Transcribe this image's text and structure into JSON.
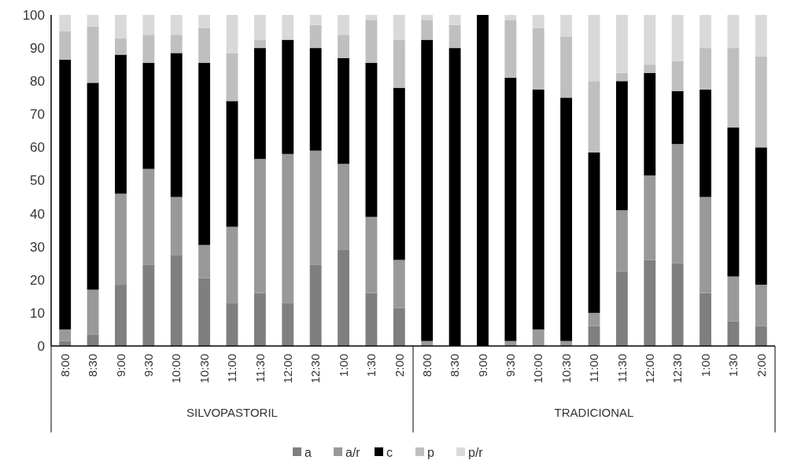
{
  "chart_data": {
    "type": "bar",
    "stacked": true,
    "categories": [
      "8:00",
      "8:30",
      "9:00",
      "9:30",
      "10:00",
      "10:30",
      "11:00",
      "11:30",
      "12:00",
      "12:30",
      "1:00",
      "1:30",
      "2:00",
      "8:00",
      "8:30",
      "9:00",
      "9:30",
      "10:00",
      "10:30",
      "11:00",
      "11:30",
      "12:00",
      "12:30",
      "1:00",
      "1:30",
      "2:00"
    ],
    "series": [
      {
        "name": "a",
        "color": "#7f7f7f",
        "values": [
          1.5,
          3.5,
          18.5,
          24.5,
          27.5,
          20.5,
          13,
          16,
          13,
          24.5,
          29,
          16,
          11.5,
          0,
          0,
          0,
          0,
          0,
          0,
          6,
          22.5,
          26,
          25,
          16,
          7.5,
          6
        ]
      },
      {
        "name": "a/r",
        "color": "#999999",
        "values": [
          3.5,
          13.5,
          27.5,
          29,
          17.5,
          10,
          23,
          40.5,
          45,
          34.5,
          26,
          23,
          14.5,
          1.5,
          0,
          0,
          1.5,
          5,
          1.5,
          4,
          18.5,
          25.5,
          36,
          29,
          13.5,
          12.5
        ]
      },
      {
        "name": "c",
        "color": "#000000",
        "values": [
          81.5,
          62.5,
          42,
          32,
          43.5,
          55,
          38,
          33.5,
          34.5,
          31,
          32,
          46.5,
          52,
          91,
          90,
          100,
          79.5,
          72.5,
          73.5,
          48.5,
          39,
          31,
          16,
          32.5,
          45,
          41.5
        ]
      },
      {
        "name": "p",
        "color": "#bfbfbf",
        "values": [
          8.5,
          17,
          5,
          8.5,
          5.5,
          10.5,
          14.5,
          2.5,
          0,
          7,
          7,
          13,
          14.5,
          6,
          7,
          0,
          17.5,
          18.5,
          18.5,
          21.5,
          2.5,
          2.5,
          9,
          12.5,
          24,
          27.5
        ]
      },
      {
        "name": "p/r",
        "color": "#d9d9d9",
        "values": [
          5,
          3.5,
          7,
          6,
          6,
          4,
          11.5,
          7.5,
          7.5,
          3,
          6,
          1.5,
          7.5,
          1.5,
          3,
          0,
          1.5,
          4,
          6.5,
          20,
          17.5,
          15,
          14,
          10,
          10,
          12.5
        ]
      }
    ],
    "ylim": [
      0,
      100
    ],
    "yticks": [
      0,
      10,
      20,
      30,
      40,
      50,
      60,
      70,
      80,
      90,
      100
    ],
    "legend": "bottom",
    "annotations": [
      "SILVOPASTORIL",
      "TRADICIONAL"
    ]
  }
}
